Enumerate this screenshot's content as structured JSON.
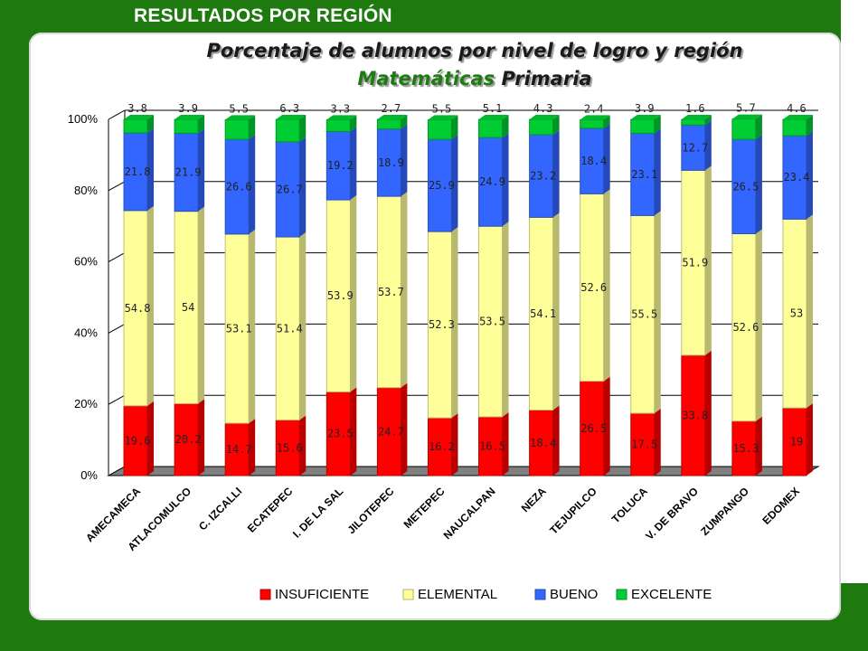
{
  "header": {
    "title": "RESULTADOS POR REGIÓN"
  },
  "title": {
    "line1": "Porcentaje de alumnos por nivel de logro y región",
    "line2_part1": "Matemáticas",
    "line2_part2": " Primaria"
  },
  "colors": {
    "insuficiente": "#ff0000",
    "elemental": "#ffff99",
    "bueno": "#3366ff",
    "excelente": "#00cc33",
    "brand_green": "#1e7a0e"
  },
  "chart_data": {
    "type": "bar",
    "stacked": true,
    "percent_axis": true,
    "ylim": [
      0,
      100
    ],
    "yticks": [
      "0%",
      "20%",
      "40%",
      "60%",
      "80%",
      "100%"
    ],
    "categories": [
      "AMECAMECA",
      "ATLACOMULCO",
      "C. IZCALLI",
      "ECATEPEC",
      "I. DE LA SAL",
      "JILOTEPEC",
      "METEPEC",
      "NAUCALPAN",
      "NEZA",
      "TEJUPILCO",
      "TOLUCA",
      "V. DE BRAVO",
      "ZUMPANGO",
      "EDOMEX"
    ],
    "series": [
      {
        "name": "INSUFICIENTE",
        "values": [
          19.6,
          20.2,
          14.7,
          15.6,
          23.5,
          24.7,
          16.2,
          16.5,
          18.4,
          26.5,
          17.5,
          33.8,
          15.3,
          19
        ]
      },
      {
        "name": "ELEMENTAL",
        "values": [
          54.8,
          54,
          53.1,
          51.4,
          53.9,
          53.7,
          52.3,
          53.5,
          54.1,
          52.6,
          55.5,
          51.9,
          52.6,
          53
        ]
      },
      {
        "name": "BUENO",
        "values": [
          21.8,
          21.9,
          26.6,
          26.7,
          19.2,
          18.9,
          25.9,
          24.9,
          23.2,
          18.4,
          23.1,
          12.7,
          26.5,
          23.4
        ]
      },
      {
        "name": "EXCELENTE",
        "values": [
          3.8,
          3.9,
          5.5,
          6.3,
          3.3,
          2.7,
          5.5,
          5.1,
          4.3,
          2.4,
          3.9,
          1.6,
          5.7,
          4.6
        ]
      }
    ],
    "legend": {
      "position": "bottom"
    },
    "grid": true
  }
}
